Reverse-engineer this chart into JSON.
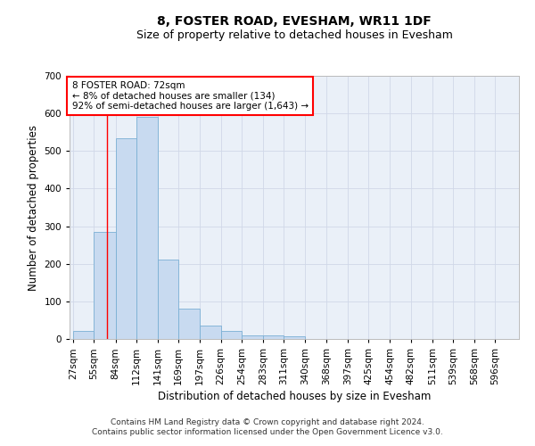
{
  "title": "8, FOSTER ROAD, EVESHAM, WR11 1DF",
  "subtitle": "Size of property relative to detached houses in Evesham",
  "xlabel": "Distribution of detached houses by size in Evesham",
  "ylabel": "Number of detached properties",
  "bar_labels": [
    "27sqm",
    "55sqm",
    "84sqm",
    "112sqm",
    "141sqm",
    "169sqm",
    "197sqm",
    "226sqm",
    "254sqm",
    "283sqm",
    "311sqm",
    "340sqm",
    "368sqm",
    "397sqm",
    "425sqm",
    "454sqm",
    "482sqm",
    "511sqm",
    "539sqm",
    "568sqm",
    "596sqm"
  ],
  "bar_values": [
    22,
    285,
    535,
    590,
    212,
    80,
    35,
    22,
    10,
    10,
    8,
    0,
    0,
    0,
    0,
    0,
    0,
    0,
    0,
    0,
    0
  ],
  "bar_color": "#c8daf0",
  "bar_edge_color": "#7aafd4",
  "grid_color": "#d0d8e8",
  "background_color": "#eaf0f8",
  "annotation_line1": "8 FOSTER ROAD: 72sqm",
  "annotation_line2": "← 8% of detached houses are smaller (134)",
  "annotation_line3": "92% of semi-detached houses are larger (1,643) →",
  "annotation_box_color": "red",
  "vline_x": 72,
  "ylim": [
    0,
    700
  ],
  "yticks": [
    0,
    100,
    200,
    300,
    400,
    500,
    600,
    700
  ],
  "footer_line1": "Contains HM Land Registry data © Crown copyright and database right 2024.",
  "footer_line2": "Contains public sector information licensed under the Open Government Licence v3.0.",
  "title_fontsize": 10,
  "subtitle_fontsize": 9,
  "axis_label_fontsize": 8.5,
  "tick_fontsize": 7.5,
  "annotation_fontsize": 7.5,
  "footer_fontsize": 6.5
}
